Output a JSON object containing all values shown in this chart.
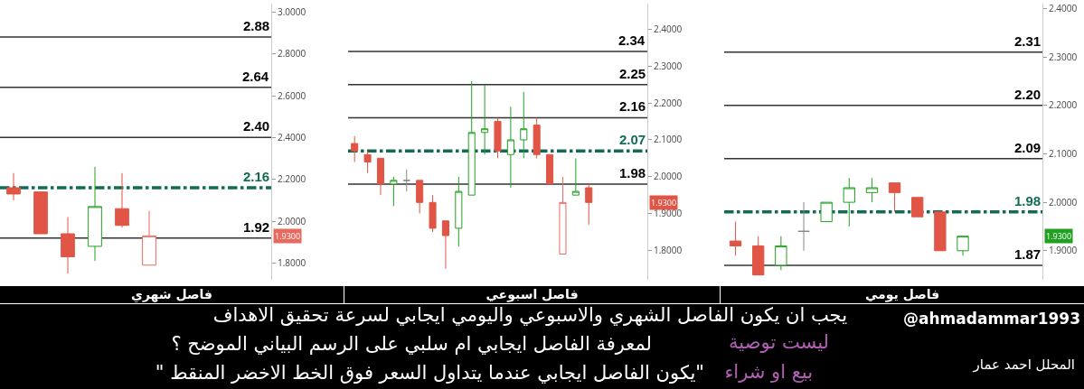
{
  "chart_data": [
    {
      "type": "candlestick",
      "xlabel": "فاصل شهري",
      "categories": [
        null,
        null,
        null,
        null,
        null,
        null,
        null,
        null,
        null,
        null
      ],
      "ohlc": [
        [
          2.16,
          2.23,
          2.1,
          2.13
        ],
        [
          2.14,
          2.14,
          1.94,
          1.94
        ],
        [
          1.94,
          2.02,
          1.75,
          1.83
        ],
        [
          1.88,
          2.26,
          1.81,
          2.07
        ],
        [
          2.06,
          2.23,
          1.97,
          1.98
        ],
        [
          1.79,
          2.05,
          1.79,
          1.93
        ],
        null,
        null,
        null,
        null
      ],
      "colors": [
        "#e05545",
        "#e05545",
        "#e05545",
        "#22a022",
        "#e05545",
        "#e86a5e",
        null,
        null,
        null,
        null
      ],
      "ylim": [
        1.72,
        3.04
      ],
      "yticks": [
        {
          "value": 1.8,
          "label": "1.8000"
        },
        {
          "value": 2.0,
          "label": "2.0000"
        },
        {
          "value": 2.2,
          "label": "2.2000"
        },
        {
          "value": 2.4,
          "label": "2.4000"
        },
        {
          "value": 2.6,
          "label": "2.6000"
        },
        {
          "value": 2.8,
          "label": "2.8000"
        },
        {
          "value": 3.0,
          "label": "3.0000"
        }
      ],
      "tick_labels": "y",
      "ref_lines": [
        {
          "axis": "y",
          "value": 2.88,
          "label": "2.88",
          "color": "#333333",
          "line_style": "solid"
        },
        {
          "axis": "y",
          "value": 2.64,
          "label": "2.64",
          "color": "#333333",
          "line_style": "solid"
        },
        {
          "axis": "y",
          "value": 2.4,
          "label": "2.40",
          "color": "#333333",
          "line_style": "solid"
        },
        {
          "axis": "y",
          "value": 2.16,
          "label": "2.16",
          "color": "#116b55",
          "line_style": "dashed"
        },
        {
          "axis": "y",
          "value": 1.92,
          "label": "1.92",
          "color": "#333333",
          "line_style": "solid"
        }
      ],
      "annotations": [
        "1.9300",
        "@ahmadammar1993",
        "يجب ان يكون الفاصل الشهري والاسبوعي واليومي ايجابي لسرعة تحقيق الاهداف",
        "لمعرفة الفاصل ايجابي ام سلبي على الرسم البياني الموضح ؟",
        "ليست توصية",
        "المحلل احمد عمار",
        "\"يكون الفاصل ايجابي عندما يتداول السعر فوق الخط الاخضر المنقط \"",
        "بيع او شراء"
      ]
    },
    {
      "type": "candlestick",
      "xlabel": "فاصل اسبوعي",
      "categories": [
        null,
        null,
        null,
        null,
        null,
        null,
        null,
        null,
        null,
        null,
        null,
        null,
        null,
        null,
        null,
        null,
        null,
        null,
        null,
        null,
        null,
        null,
        null
      ],
      "ohlc": [
        [
          2.09,
          2.11,
          2.04,
          2.07
        ],
        [
          2.06,
          2.07,
          2.01,
          2.04
        ],
        [
          2.05,
          2.05,
          1.95,
          1.98
        ],
        [
          1.98,
          2.0,
          1.92,
          1.99
        ],
        [
          1.99,
          2.02,
          1.96,
          1.99
        ],
        [
          1.99,
          1.99,
          1.9,
          1.93
        ],
        [
          1.93,
          1.95,
          1.85,
          1.86
        ],
        [
          1.88,
          1.88,
          1.75,
          1.84
        ],
        [
          1.86,
          2.0,
          1.81,
          1.96
        ],
        [
          1.95,
          2.26,
          1.95,
          2.12
        ],
        [
          2.12,
          2.25,
          2.06,
          2.13
        ],
        [
          2.15,
          2.16,
          2.05,
          2.07
        ],
        [
          2.06,
          2.19,
          1.97,
          2.1
        ],
        [
          2.1,
          2.23,
          2.05,
          2.13
        ],
        [
          2.14,
          2.16,
          2.05,
          2.06
        ],
        [
          2.06,
          2.06,
          1.98,
          1.98
        ],
        [
          1.79,
          2.0,
          1.79,
          1.93
        ],
        [
          1.95,
          2.05,
          1.95,
          1.96
        ],
        [
          1.97,
          1.98,
          1.87,
          1.93
        ],
        null,
        null,
        null,
        null
      ],
      "colors": [
        "#e05545",
        "#e05545",
        "#e05545",
        "#22a022",
        "#888888",
        "#e05545",
        "#e05545",
        "#e05545",
        "#22a022",
        "#22a022",
        "#22a022",
        "#e05545",
        "#22a022",
        "#22a022",
        "#e05545",
        "#e05545",
        "#e86a5e",
        "#22a022",
        "#e05545",
        null,
        null,
        null,
        null
      ],
      "ylim": [
        1.72,
        2.47
      ],
      "yticks": [
        {
          "value": 1.8,
          "label": "1.8000"
        },
        {
          "value": 1.9,
          "label": "1.9000"
        },
        {
          "value": 2.0,
          "label": "2.0000"
        },
        {
          "value": 2.1,
          "label": "2.1000"
        },
        {
          "value": 2.2,
          "label": "2.2000"
        },
        {
          "value": 2.3,
          "label": "2.3000"
        },
        {
          "value": 2.4,
          "label": "2.4000"
        }
      ],
      "tick_labels": "y",
      "ref_lines": [
        {
          "axis": "y",
          "value": 2.34,
          "label": "2.34",
          "color": "#333333",
          "line_style": "solid"
        },
        {
          "axis": "y",
          "value": 2.25,
          "label": "2.25",
          "color": "#333333",
          "line_style": "solid"
        },
        {
          "axis": "y",
          "value": 2.16,
          "label": "2.16",
          "color": "#333333",
          "line_style": "solid"
        },
        {
          "axis": "y",
          "value": 2.07,
          "label": "2.07",
          "color": "#116b55",
          "line_style": "dashed"
        },
        {
          "axis": "y",
          "value": 1.98,
          "label": "1.98",
          "color": "#333333",
          "line_style": "solid"
        }
      ],
      "annotations": [
        "1.9300"
      ]
    },
    {
      "type": "candlestick",
      "xlabel": "فاصل يومي",
      "categories": [
        null,
        null,
        null,
        null,
        null,
        null,
        null,
        null,
        null,
        null,
        null,
        null,
        null,
        null
      ],
      "ohlc": [
        [
          1.92,
          1.96,
          1.89,
          1.91
        ],
        [
          1.91,
          1.93,
          1.85,
          1.85
        ],
        [
          1.87,
          1.93,
          1.86,
          1.91
        ],
        [
          1.94,
          2.0,
          1.9,
          1.94
        ],
        [
          1.96,
          2.0,
          1.96,
          2.0
        ],
        [
          2.0,
          2.05,
          1.95,
          2.03
        ],
        [
          2.02,
          2.05,
          2.0,
          2.03
        ],
        [
          2.04,
          2.04,
          1.98,
          2.02
        ],
        [
          2.01,
          2.01,
          1.97,
          1.97
        ],
        [
          1.98,
          1.98,
          1.9,
          1.9
        ],
        [
          1.9,
          1.93,
          1.89,
          1.93
        ],
        null,
        null,
        null
      ],
      "colors": [
        "#e05545",
        "#e05545",
        "#22a022",
        "#888888",
        "#22a022",
        "#22a022",
        "#22a022",
        "#e05545",
        "#e05545",
        "#e05545",
        "#22a022",
        null,
        null,
        null
      ],
      "ylim": [
        1.84,
        2.41
      ],
      "yticks": [
        {
          "value": 1.9,
          "label": "1.9000"
        },
        {
          "value": 2.0,
          "label": "2.0000"
        },
        {
          "value": 2.1,
          "label": "2.1000"
        },
        {
          "value": 2.2,
          "label": "2.2000"
        },
        {
          "value": 2.3,
          "label": "2.3000"
        },
        {
          "value": 2.4,
          "label": "2.4000"
        }
      ],
      "tick_labels": "y",
      "ref_lines": [
        {
          "axis": "y",
          "value": 2.31,
          "label": "2.31",
          "color": "#333333",
          "line_style": "solid"
        },
        {
          "axis": "y",
          "value": 2.2,
          "label": "2.20",
          "color": "#333333",
          "line_style": "solid"
        },
        {
          "axis": "y",
          "value": 2.09,
          "label": "2.09",
          "color": "#333333",
          "line_style": "solid"
        },
        {
          "axis": "y",
          "value": 1.98,
          "label": "1.98",
          "color": "#116b55",
          "line_style": "dashed"
        },
        {
          "axis": "y",
          "value": 1.87,
          "label": "1.87",
          "color": "#333333",
          "line_style": "solid"
        }
      ],
      "annotations": [
        "1.9300"
      ]
    }
  ]
}
